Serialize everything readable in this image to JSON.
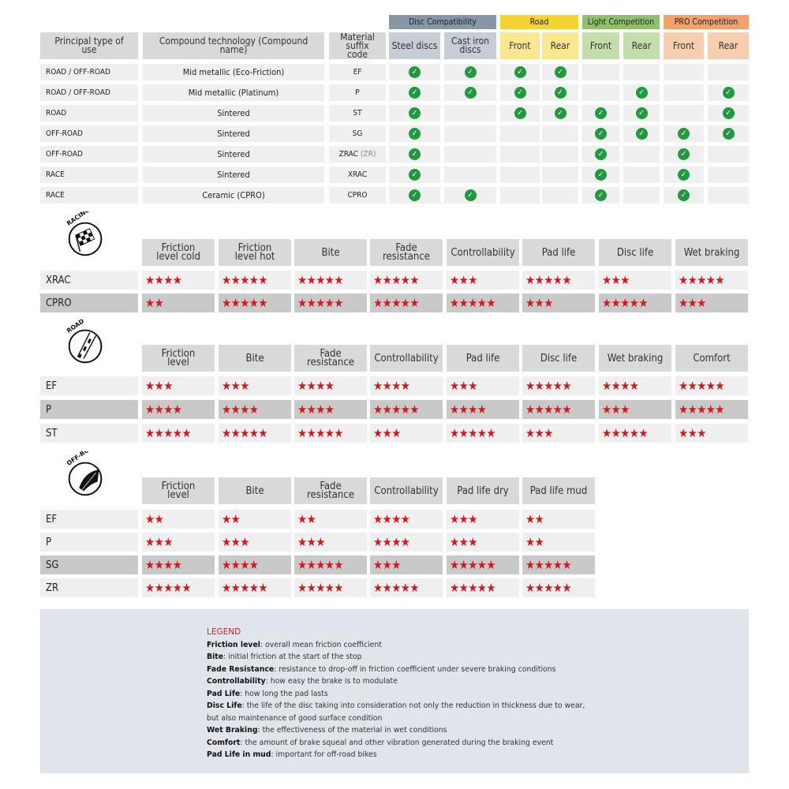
{
  "compat": {
    "groups": [
      {
        "label": "Disc Compatibility",
        "color": "#8797a8",
        "sub_color": "#c6cdd6"
      },
      {
        "label": "Road",
        "color": "#f5d432",
        "sub_color": "#f9e88f"
      },
      {
        "label": "Light Competition",
        "color": "#8fc16a",
        "sub_color": "#c3deaa"
      },
      {
        "label": "PRO Competition",
        "color": "#f2a16b",
        "sub_color": "#f8cfae"
      }
    ],
    "headers": [
      "Principal type of use",
      "Compound technology (Compound name)",
      "Material suffix code",
      "Steel discs",
      "Cast iron discs",
      "Front",
      "Rear",
      "Front",
      "Rear",
      "Front",
      "Rear"
    ],
    "rows": [
      {
        "use": "ROAD / OFF-ROAD",
        "compound": "Mid metallic (Eco-Friction)",
        "code": "EF",
        "code_extra": "",
        "checks": [
          true,
          true,
          true,
          true,
          false,
          false,
          false,
          false
        ]
      },
      {
        "use": "ROAD / OFF-ROAD",
        "compound": "Mid metallic (Platinum)",
        "code": "P",
        "code_extra": "",
        "checks": [
          true,
          true,
          true,
          true,
          false,
          true,
          false,
          true
        ]
      },
      {
        "use": "ROAD",
        "compound": "Sintered",
        "code": "ST",
        "code_extra": "",
        "checks": [
          true,
          false,
          true,
          true,
          true,
          true,
          false,
          true
        ]
      },
      {
        "use": "OFF-ROAD",
        "compound": "Sintered",
        "code": "SG",
        "code_extra": "",
        "checks": [
          true,
          false,
          false,
          false,
          true,
          true,
          true,
          true
        ]
      },
      {
        "use": "OFF-ROAD",
        "compound": "Sintered",
        "code": "ZRAC",
        "code_extra": "(ZR)",
        "checks": [
          true,
          false,
          false,
          false,
          true,
          false,
          true,
          false
        ]
      },
      {
        "use": "RACE",
        "compound": "Sintered",
        "code": "XRAC",
        "code_extra": "",
        "checks": [
          true,
          false,
          false,
          false,
          true,
          false,
          true,
          false
        ]
      },
      {
        "use": "RACE",
        "compound": "Ceramic (CPRO)",
        "code": "CPRO",
        "code_extra": "",
        "checks": [
          true,
          true,
          false,
          false,
          true,
          false,
          true,
          false
        ]
      }
    ],
    "check_color": "#1f9a3e"
  },
  "ratings": [
    {
      "icon": "racing-flag-icon",
      "icon_label": "RACING",
      "columns": [
        "Friction level cold",
        "Friction level hot",
        "Bite",
        "Fade resistance",
        "Controllability",
        "Pad life",
        "Disc life",
        "Wet braking"
      ],
      "rows": [
        {
          "code": "XRAC",
          "shade": "light",
          "stars": [
            4,
            5,
            5,
            5,
            3,
            5,
            3,
            5
          ]
        },
        {
          "code": "CPRO",
          "shade": "dark",
          "stars": [
            2,
            5,
            5,
            5,
            5,
            3,
            5,
            3
          ]
        }
      ]
    },
    {
      "icon": "road-icon",
      "icon_label": "ROAD",
      "columns": [
        "Friction level",
        "Bite",
        "Fade resistance",
        "Controllability",
        "Pad life",
        "Disc life",
        "Wet braking",
        "Comfort"
      ],
      "rows": [
        {
          "code": "EF",
          "shade": "light",
          "stars": [
            3,
            3,
            4,
            4,
            3,
            5,
            4,
            5
          ]
        },
        {
          "code": "P",
          "shade": "dark",
          "stars": [
            4,
            4,
            4,
            5,
            4,
            5,
            3,
            5
          ]
        },
        {
          "code": "ST",
          "shade": "light",
          "stars": [
            5,
            5,
            5,
            3,
            5,
            3,
            5,
            3
          ]
        }
      ]
    },
    {
      "icon": "off-road-icon",
      "icon_label": "OFF-ROAD",
      "columns": [
        "Friction level",
        "Bite",
        "Fade resistance",
        "Controllability",
        "Pad life dry",
        "Pad life mud"
      ],
      "rows": [
        {
          "code": "EF",
          "shade": "light",
          "stars": [
            2,
            2,
            2,
            4,
            3,
            2
          ]
        },
        {
          "code": "P",
          "shade": "light",
          "stars": [
            3,
            3,
            3,
            4,
            3,
            2
          ]
        },
        {
          "code": "SG",
          "shade": "dark",
          "stars": [
            4,
            4,
            5,
            3,
            5,
            5
          ]
        },
        {
          "code": "ZR",
          "shade": "light",
          "stars": [
            5,
            5,
            5,
            5,
            5,
            5
          ]
        }
      ]
    }
  ],
  "star_color": "#d9141b",
  "legend": {
    "title": "LEGEND",
    "items": [
      {
        "term": "Friction level",
        "desc": ": overall mean friction coefficient"
      },
      {
        "term": "Bite",
        "desc": ": initial friction at the start of the stop"
      },
      {
        "term": "Fade Resistance",
        "desc": ": resistance to drop-off in friction coefficient under severe braking conditions"
      },
      {
        "term": "Controllability",
        "desc": ": how easy the brake is to modulate"
      },
      {
        "term": "Pad Life",
        "desc": ": how long the pad lasts"
      },
      {
        "term": "Disc Life",
        "desc": ": the life of the disc taking into consideration not only the reduction in thickness due to wear,"
      },
      {
        "term": "",
        "desc": "but also maintenance of good surface condition"
      },
      {
        "term": "Wet Braking",
        "desc": ": the effectiveness of the material in wet conditions"
      },
      {
        "term": "Comfort",
        "desc": ": the amount of brake squeal and other vibration generated during the braking event"
      },
      {
        "term": "Pad Life in mud",
        "desc": ": important for off-road bikes"
      }
    ]
  }
}
